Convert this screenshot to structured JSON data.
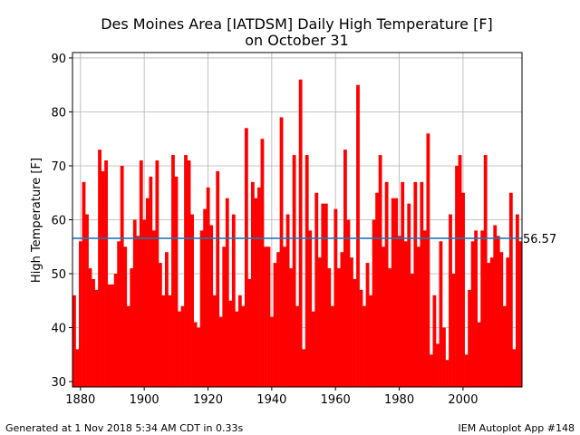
{
  "chart_data": {
    "type": "bar",
    "title_line1": "Des Moines Area [IATDSM] Daily High Temperature [F]",
    "title_line2": "on October 31",
    "xlabel": "",
    "ylabel": "High Temperature [F]",
    "xlim": [
      1877.5,
      2018.5
    ],
    "ylim": [
      29,
      91
    ],
    "xticks": [
      1880,
      1900,
      1920,
      1940,
      1960,
      1980,
      2000
    ],
    "yticks": [
      30,
      40,
      50,
      60,
      70,
      80,
      90
    ],
    "grid": true,
    "bar_color": "#ff0000",
    "average": 56.57,
    "average_label": "56.57",
    "average_color": "#1f77b4",
    "x": [
      1878,
      1879,
      1880,
      1881,
      1882,
      1883,
      1884,
      1885,
      1886,
      1887,
      1888,
      1889,
      1890,
      1891,
      1892,
      1893,
      1894,
      1895,
      1896,
      1897,
      1898,
      1899,
      1900,
      1901,
      1902,
      1903,
      1904,
      1905,
      1906,
      1907,
      1908,
      1909,
      1910,
      1911,
      1912,
      1913,
      1914,
      1915,
      1916,
      1917,
      1918,
      1919,
      1920,
      1921,
      1922,
      1923,
      1924,
      1925,
      1926,
      1927,
      1928,
      1929,
      1930,
      1931,
      1932,
      1933,
      1934,
      1935,
      1936,
      1937,
      1938,
      1939,
      1940,
      1941,
      1942,
      1943,
      1944,
      1945,
      1946,
      1947,
      1948,
      1949,
      1950,
      1951,
      1952,
      1953,
      1954,
      1955,
      1956,
      1957,
      1958,
      1959,
      1960,
      1961,
      1962,
      1963,
      1964,
      1965,
      1966,
      1967,
      1968,
      1969,
      1970,
      1971,
      1972,
      1973,
      1974,
      1975,
      1976,
      1977,
      1978,
      1979,
      1980,
      1981,
      1982,
      1983,
      1984,
      1985,
      1986,
      1987,
      1988,
      1989,
      1990,
      1991,
      1992,
      1993,
      1994,
      1995,
      1996,
      1997,
      1998,
      1999,
      2000,
      2001,
      2002,
      2003,
      2004,
      2005,
      2006,
      2007,
      2008,
      2009,
      2010,
      2011,
      2012,
      2013,
      2014,
      2015,
      2016,
      2017,
      2018
    ],
    "values": [
      46,
      36,
      56,
      67,
      61,
      51,
      49,
      47,
      73,
      69,
      71,
      48,
      48,
      50,
      56,
      70,
      55,
      44,
      51,
      60,
      57,
      71,
      60,
      64,
      68,
      58,
      71,
      52,
      46,
      54,
      46,
      72,
      68,
      43,
      44,
      72,
      71,
      61,
      41,
      40,
      58,
      62,
      66,
      59,
      46,
      69,
      42,
      55,
      64,
      45,
      61,
      43,
      46,
      44,
      77,
      49,
      67,
      64,
      66,
      75,
      55,
      55,
      42,
      52,
      54,
      79,
      55,
      61,
      51,
      72,
      44,
      86,
      36,
      72,
      58,
      43,
      65,
      53,
      63,
      63,
      51,
      44,
      62,
      51,
      54,
      73,
      60,
      53,
      49,
      85,
      47,
      44,
      52,
      46,
      60,
      65,
      72,
      55,
      67,
      51,
      64,
      64,
      57,
      67,
      56,
      63,
      50,
      67,
      55,
      67,
      58,
      76,
      35,
      46,
      37,
      56,
      40,
      34,
      61,
      50,
      70,
      72,
      65,
      35,
      47,
      56,
      58,
      41,
      58,
      72,
      52,
      53,
      59,
      57,
      54,
      44,
      53,
      65,
      36,
      61,
      56
    ]
  },
  "footer": {
    "left": "Generated at 1 Nov 2018 5:34 AM CDT in 0.33s",
    "right": "IEM Autoplot App #148"
  }
}
